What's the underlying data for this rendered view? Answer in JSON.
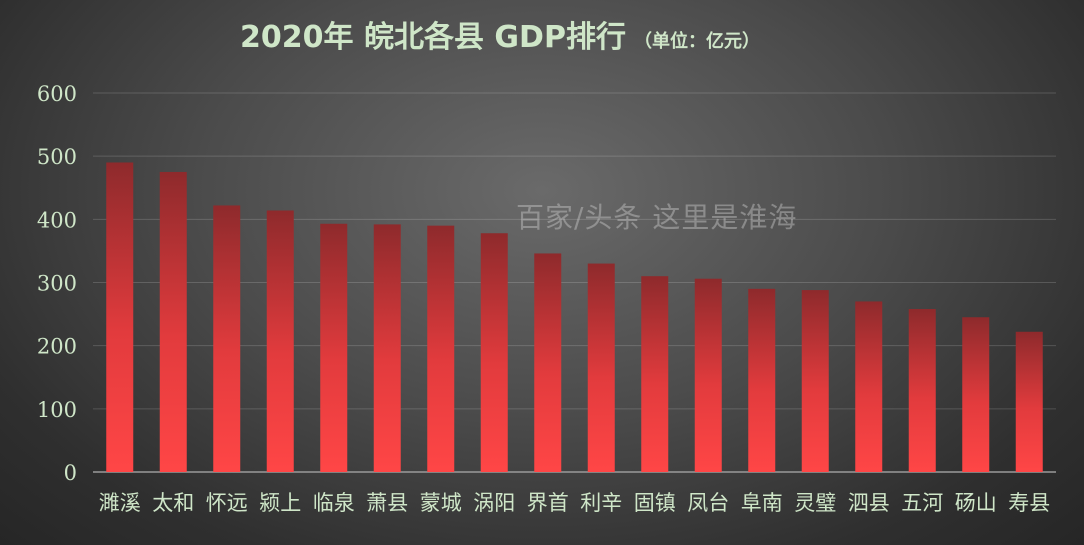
{
  "title": "2020年  皖北各县 GDP排行",
  "unit": "（单位：亿元）",
  "watermark": "百家/头条  这里是淮海",
  "chart_data": {
    "type": "bar",
    "title": "2020年  皖北各县 GDP排行",
    "subtitle": "（单位：亿元）",
    "xlabel": "",
    "ylabel": "",
    "ylim": [
      0,
      600
    ],
    "yticks": [
      0,
      100,
      200,
      300,
      400,
      500,
      600
    ],
    "grid": true,
    "legend": "none",
    "bar_color_top": "#8e2a2c",
    "bar_color_bottom": "#ff4646",
    "categories": [
      "濉溪",
      "太和",
      "怀远",
      "颍上",
      "临泉",
      "萧县",
      "蒙城",
      "涡阳",
      "界首",
      "利辛",
      "固镇",
      "凤台",
      "阜南",
      "灵璧",
      "泗县",
      "五河",
      "砀山",
      "寿县"
    ],
    "values": [
      490,
      475,
      422,
      414,
      393,
      392,
      390,
      378,
      346,
      330,
      310,
      306,
      290,
      288,
      270,
      258,
      245,
      222
    ]
  }
}
